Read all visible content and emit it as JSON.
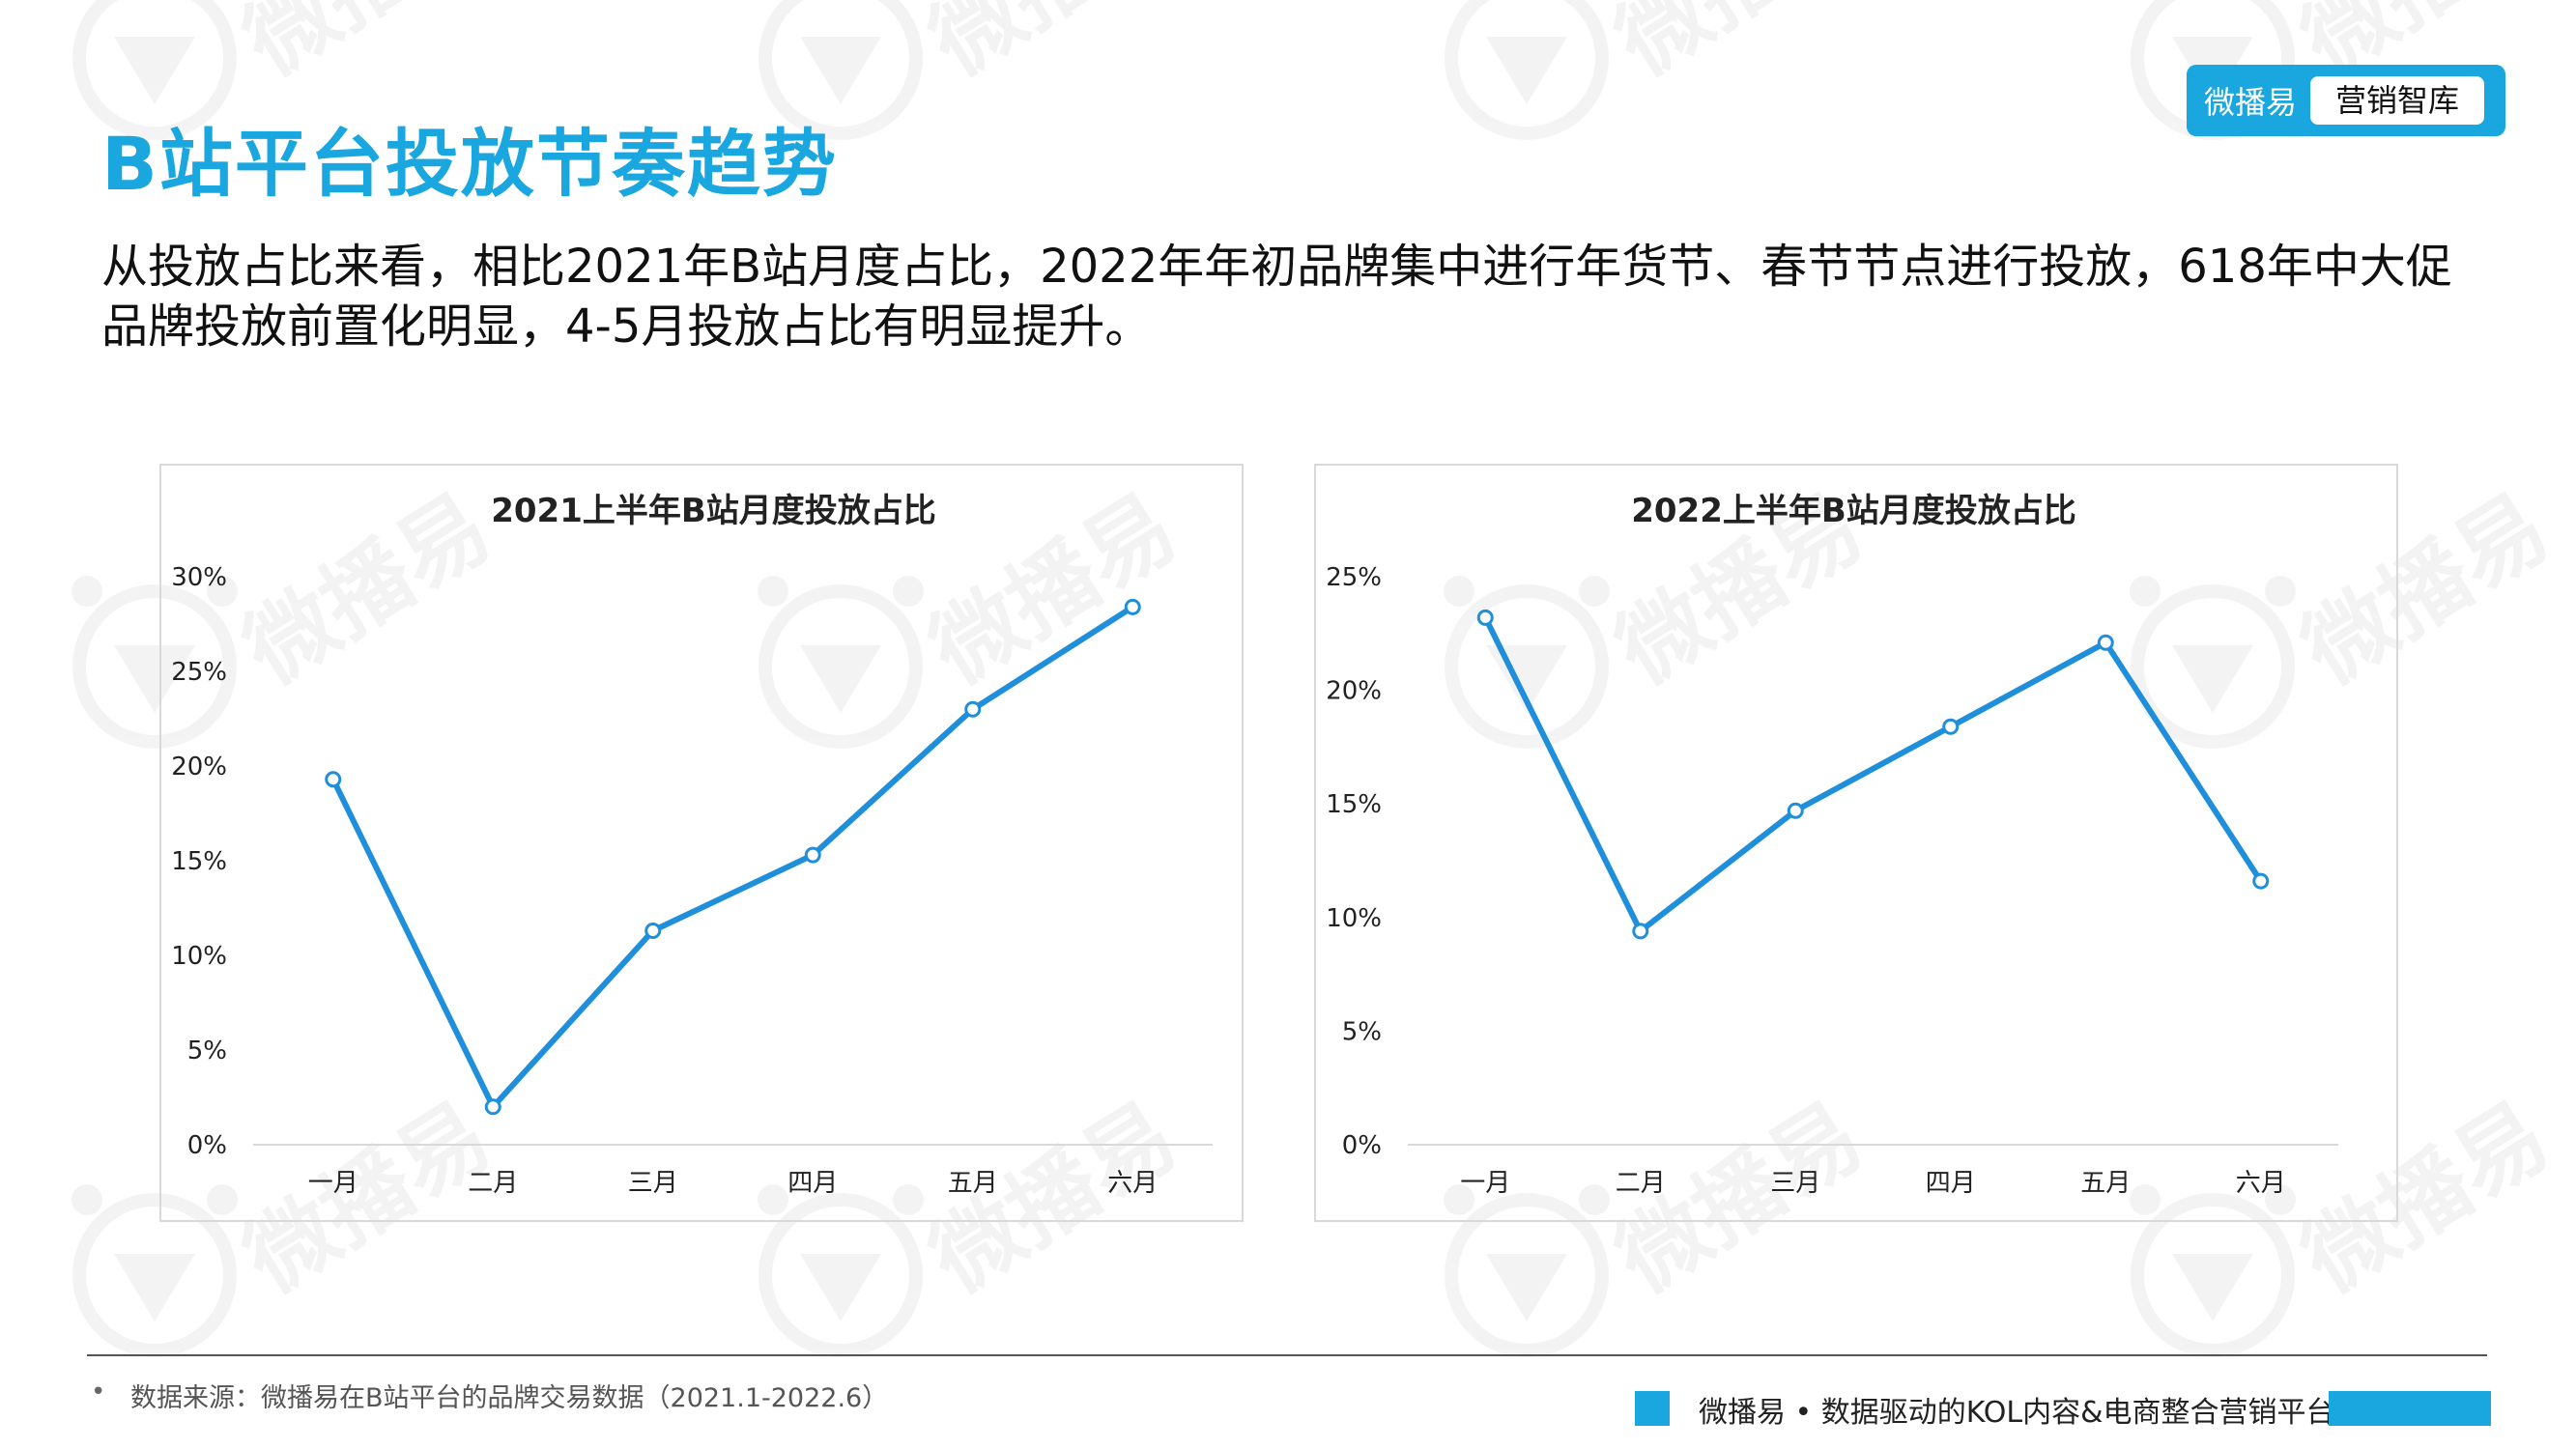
{
  "page": {
    "title": "B站平台投放节奏趋势",
    "subtitle": "从投放占比来看，相比2021年B站月度占比，2022年年初品牌集中进行年货节、春节节点进行投放，618年中大促品牌投放前置化明显，4-5月投放占比有明显提升。"
  },
  "brand": {
    "name": "微播易",
    "tag": "营销智库",
    "watermark": "微播易"
  },
  "footer": {
    "source": "数据来源：微播易在B站平台的品牌交易数据（2021.1-2022.6）",
    "slogan": "微播易 • 数据驱动的KOL内容&电商整合营销平台"
  },
  "colors": {
    "accent": "#1aa6de",
    "line": "#1f8fdc"
  },
  "chart_data": [
    {
      "type": "line",
      "title": "2021上半年B站月度投放占比",
      "categories": [
        "一月",
        "二月",
        "三月",
        "四月",
        "五月",
        "六月"
      ],
      "values": [
        19.3,
        2.0,
        11.3,
        15.3,
        23.0,
        28.4
      ],
      "unit": "%",
      "ylim": [
        0,
        30
      ],
      "yticks": [
        "0%",
        "5%",
        "10%",
        "15%",
        "20%",
        "25%",
        "30%"
      ],
      "grid": false,
      "legend": "none"
    },
    {
      "type": "line",
      "title": "2022上半年B站月度投放占比",
      "categories": [
        "一月",
        "二月",
        "三月",
        "四月",
        "五月",
        "六月"
      ],
      "values": [
        23.2,
        9.4,
        14.7,
        18.4,
        22.1,
        11.6
      ],
      "unit": "%",
      "ylim": [
        0,
        25
      ],
      "yticks": [
        "0%",
        "5%",
        "10%",
        "15%",
        "20%",
        "25%"
      ],
      "grid": false,
      "legend": "none"
    }
  ]
}
